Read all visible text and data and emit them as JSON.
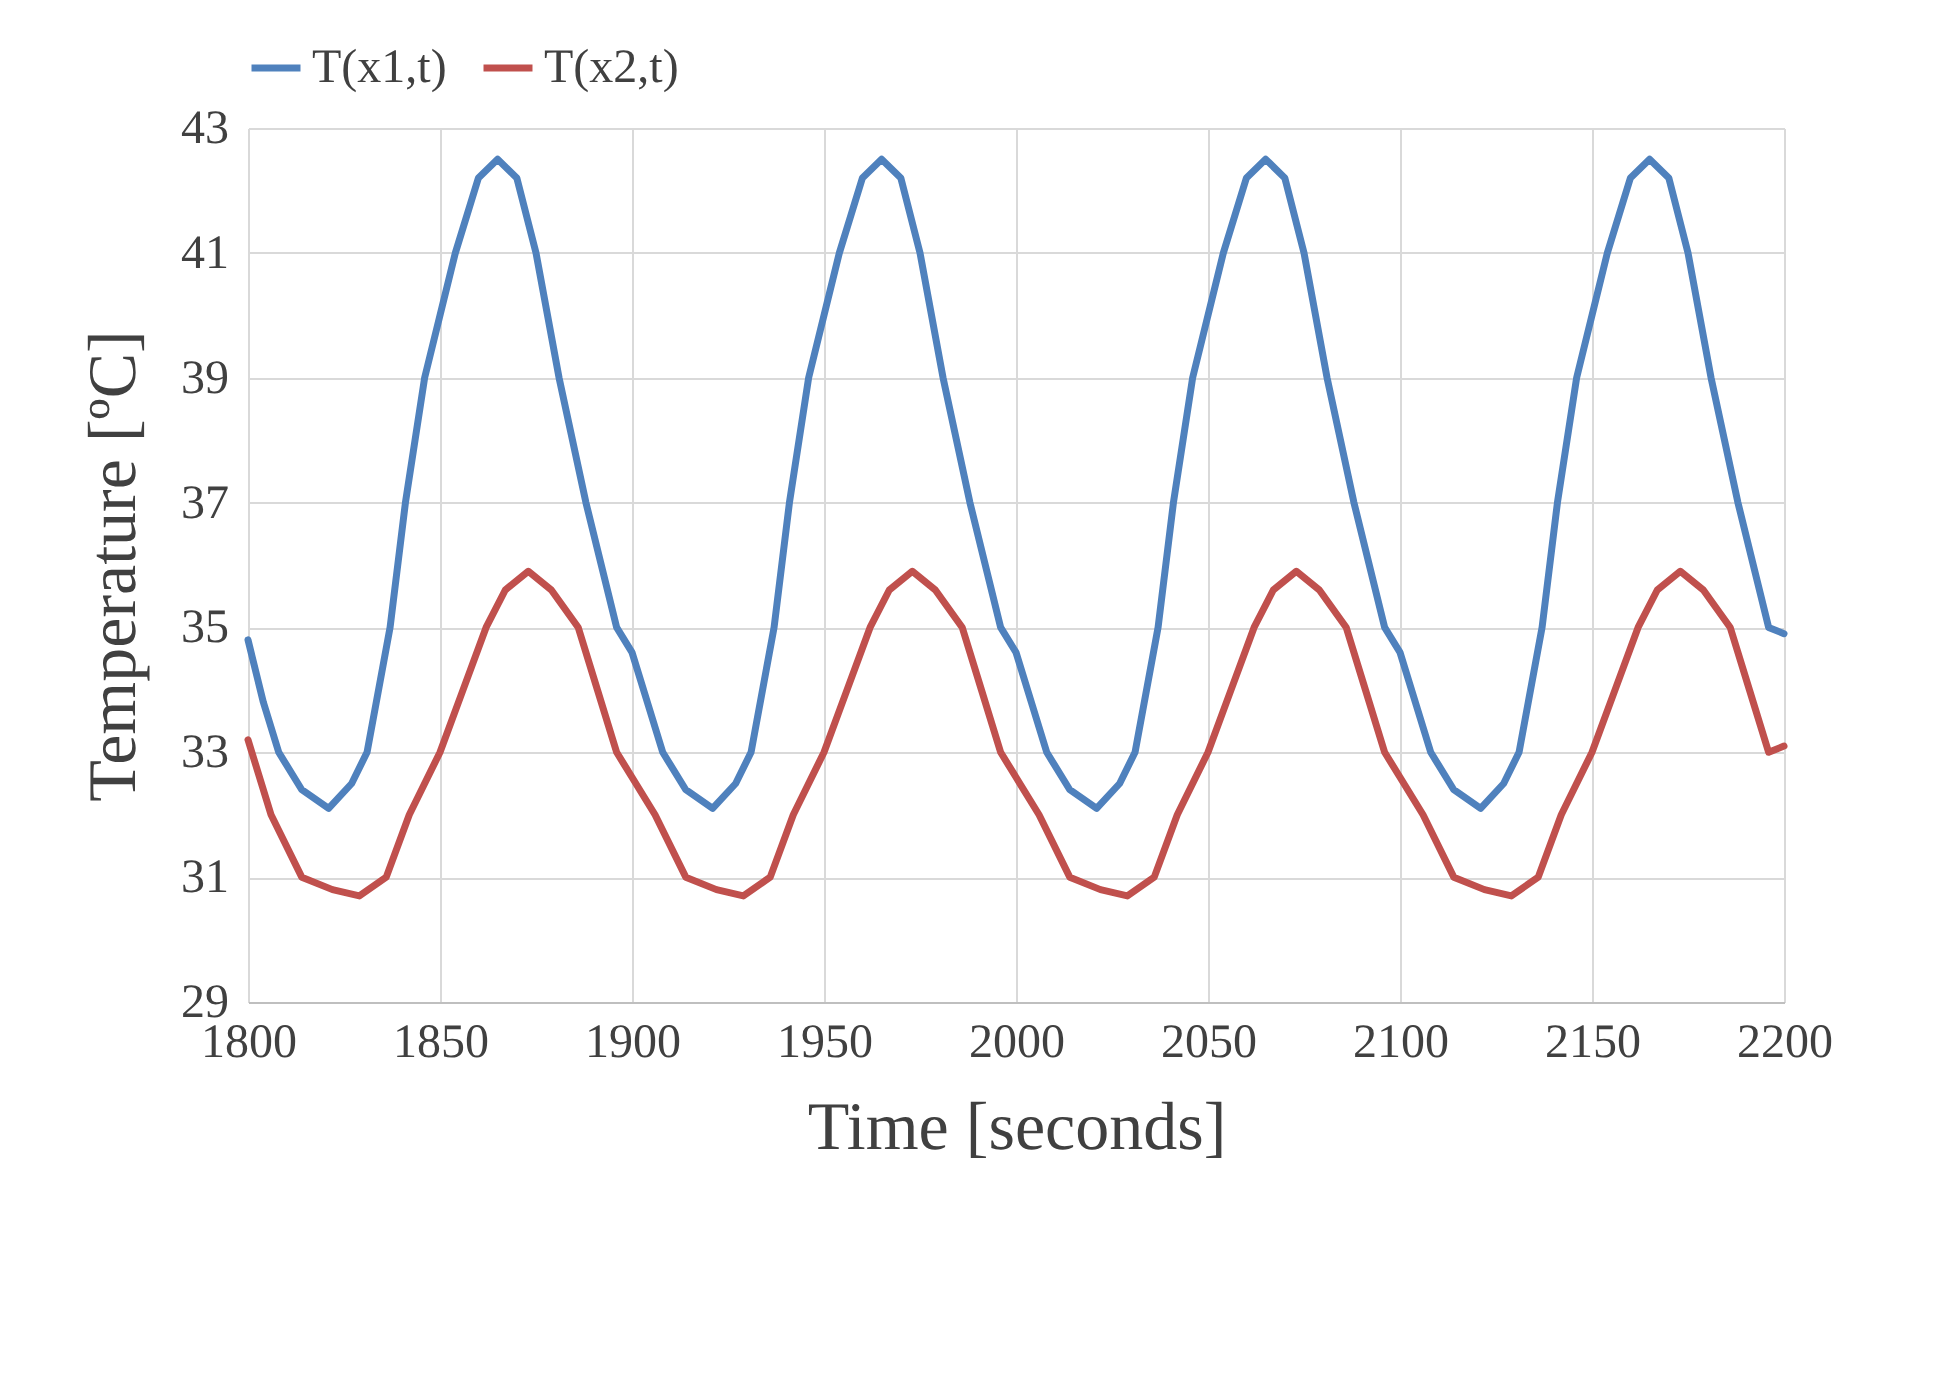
{
  "chart_data": {
    "type": "line",
    "xlabel": "Time [seconds]",
    "ylabel": "Temperature [ºC]",
    "xlim": [
      1800,
      2200
    ],
    "xticks": [
      1800,
      1850,
      1900,
      1950,
      2000,
      2050,
      2100,
      2150,
      2200
    ],
    "ylim": [
      29,
      43
    ],
    "yticks": [
      29,
      31,
      33,
      35,
      37,
      39,
      41,
      43
    ],
    "grid": true,
    "legend": "top",
    "series": [
      {
        "name": "T(x1,t)",
        "color": "#4f81bd",
        "x": [
          1800,
          1804,
          1808,
          1814,
          1821,
          1827,
          1831,
          1837,
          1841,
          1846,
          1854,
          1860,
          1865,
          1870,
          1875,
          1881,
          1888,
          1896,
          1900,
          1904,
          1908,
          1914,
          1921,
          1927,
          1931,
          1937,
          1941,
          1946,
          1954,
          1960,
          1965,
          1970,
          1975,
          1981,
          1988,
          1996,
          2000,
          2004,
          2008,
          2014,
          2021,
          2027,
          2031,
          2037,
          2041,
          2046,
          2054,
          2060,
          2065,
          2070,
          2075,
          2081,
          2088,
          2096,
          2100,
          2104,
          2108,
          2114,
          2121,
          2127,
          2131,
          2137,
          2141,
          2146,
          2154,
          2160,
          2165,
          2170,
          2175,
          2181,
          2188,
          2196,
          2200
        ],
        "values": [
          34.8,
          33.8,
          33.0,
          32.4,
          32.1,
          32.5,
          33.0,
          35.0,
          37.0,
          39.0,
          41.0,
          42.2,
          42.5,
          42.2,
          41.0,
          39.0,
          37.0,
          35.0,
          34.6,
          33.8,
          33.0,
          32.4,
          32.1,
          32.5,
          33.0,
          35.0,
          37.0,
          39.0,
          41.0,
          42.2,
          42.5,
          42.2,
          41.0,
          39.0,
          37.0,
          35.0,
          34.6,
          33.8,
          33.0,
          32.4,
          32.1,
          32.5,
          33.0,
          35.0,
          37.0,
          39.0,
          41.0,
          42.2,
          42.5,
          42.2,
          41.0,
          39.0,
          37.0,
          35.0,
          34.6,
          33.8,
          33.0,
          32.4,
          32.1,
          32.5,
          33.0,
          35.0,
          37.0,
          39.0,
          41.0,
          42.2,
          42.5,
          42.2,
          41.0,
          39.0,
          37.0,
          35.0,
          34.9
        ]
      },
      {
        "name": "T(x2,t)",
        "color": "#c0504d",
        "x": [
          1800,
          1806,
          1814,
          1822,
          1829,
          1836,
          1842,
          1850,
          1856,
          1862,
          1867,
          1873,
          1879,
          1886,
          1891,
          1896,
          1900,
          1906,
          1914,
          1922,
          1929,
          1936,
          1942,
          1950,
          1956,
          1962,
          1967,
          1973,
          1979,
          1986,
          1991,
          1996,
          2000,
          2006,
          2014,
          2022,
          2029,
          2036,
          2042,
          2050,
          2056,
          2062,
          2067,
          2073,
          2079,
          2086,
          2091,
          2096,
          2100,
          2106,
          2114,
          2122,
          2129,
          2136,
          2142,
          2150,
          2156,
          2162,
          2167,
          2173,
          2179,
          2186,
          2191,
          2196,
          2200
        ],
        "values": [
          33.2,
          32.0,
          31.0,
          30.8,
          30.7,
          31.0,
          32.0,
          33.0,
          34.0,
          35.0,
          35.6,
          35.9,
          35.6,
          35.0,
          34.0,
          33.0,
          32.6,
          32.0,
          31.0,
          30.8,
          30.7,
          31.0,
          32.0,
          33.0,
          34.0,
          35.0,
          35.6,
          35.9,
          35.6,
          35.0,
          34.0,
          33.0,
          32.6,
          32.0,
          31.0,
          30.8,
          30.7,
          31.0,
          32.0,
          33.0,
          34.0,
          35.0,
          35.6,
          35.9,
          35.6,
          35.0,
          34.0,
          33.0,
          32.6,
          32.0,
          31.0,
          30.8,
          30.7,
          31.0,
          32.0,
          33.0,
          34.0,
          35.0,
          35.6,
          35.9,
          35.6,
          35.0,
          34.0,
          33.0,
          33.1
        ]
      }
    ]
  }
}
